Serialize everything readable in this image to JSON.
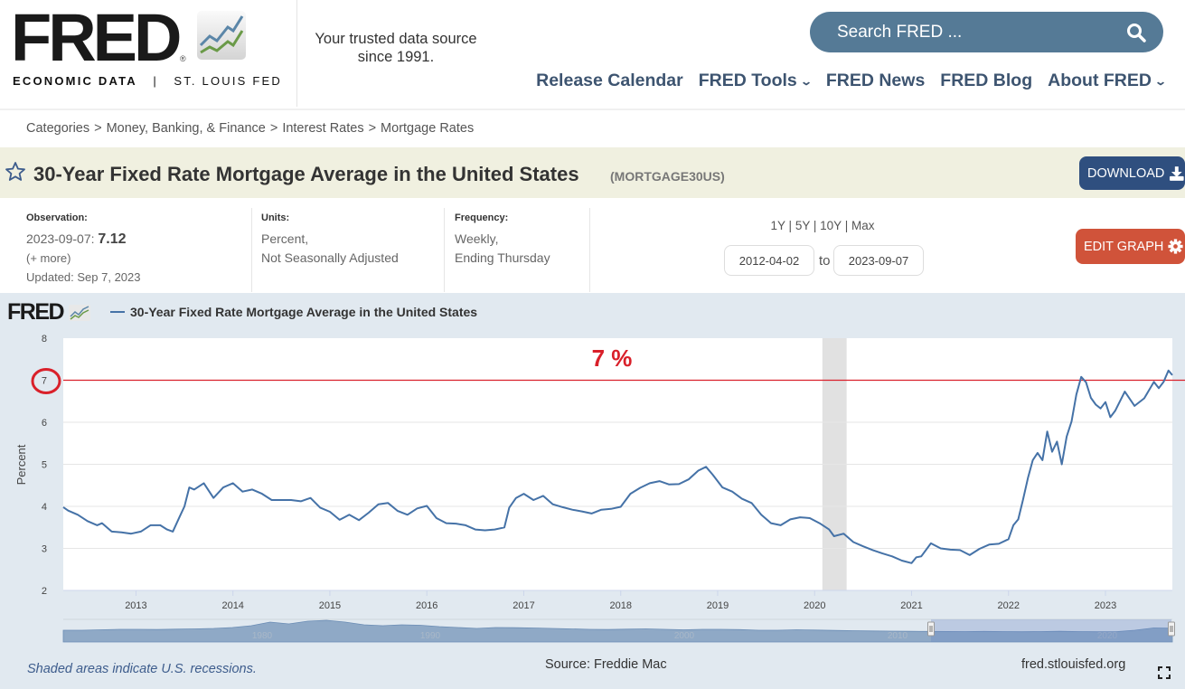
{
  "header": {
    "logo_text": "FRED",
    "logo_sub_bold": "ECONOMIC DATA",
    "logo_sub_sep": "|",
    "logo_sub": "ST. LOUIS FED",
    "tagline_line1": "Your trusted data source",
    "tagline_line2": "since 1991.",
    "search_placeholder": "Search FRED ...",
    "nav": [
      {
        "label": "Release Calendar",
        "dropdown": false
      },
      {
        "label": "FRED Tools",
        "dropdown": true
      },
      {
        "label": "FRED News",
        "dropdown": false
      },
      {
        "label": "FRED Blog",
        "dropdown": false
      },
      {
        "label": "About FRED",
        "dropdown": true
      }
    ]
  },
  "breadcrumb": {
    "items": [
      "Categories",
      "Money, Banking, & Finance",
      "Interest Rates",
      "Mortgage Rates"
    ],
    "separator": ">"
  },
  "series": {
    "title": "30-Year Fixed Rate Mortgage Average in the United States",
    "id": "(MORTGAGE30US)",
    "download_label": "DOWNLOAD",
    "edit_label": "EDIT GRAPH"
  },
  "meta": {
    "observation_label": "Observation:",
    "observation_date": "2023-09-07:",
    "observation_value": "7.12",
    "more_label": "(+ more)",
    "updated": "Updated: Sep 7, 2023",
    "units_label": "Units:",
    "units_line1": "Percent,",
    "units_line2": "Not Seasonally Adjusted",
    "frequency_label": "Frequency:",
    "frequency_line1": "Weekly,",
    "frequency_line2": "Ending Thursday",
    "range_links": [
      "1Y",
      "5Y",
      "10Y",
      "Max"
    ],
    "range_sep": "|",
    "date_from": "2012-04-02",
    "date_to": "2023-09-07",
    "to_label": "to"
  },
  "chart_footer": {
    "recession_note": "Shaded areas indicate U.S. recessions.",
    "source": "Source: Freddie Mac",
    "site": "fred.stlouisfed.org",
    "small_logo": "FRED"
  },
  "colors": {
    "series": "#4572a7",
    "annotation": "#d9202a",
    "recession": "#e1e1e1",
    "download": "#2f4f7f",
    "edit": "#d0533a",
    "search": "#557a96"
  },
  "chart_data": {
    "type": "line",
    "title": "30-Year Fixed Rate Mortgage Average in the United States",
    "legend": [
      "30-Year Fixed Rate Mortgage Average in the United States"
    ],
    "legend_position": "top-left",
    "xlabel": "",
    "ylabel": "Percent",
    "xlim": [
      2012.25,
      2023.69
    ],
    "ylim": [
      2,
      8
    ],
    "yticks": [
      2,
      3,
      4,
      5,
      6,
      7,
      8
    ],
    "xticks": [
      2013,
      2014,
      2015,
      2016,
      2017,
      2018,
      2019,
      2020,
      2021,
      2022,
      2023
    ],
    "grid": true,
    "recessions": [
      [
        2020.08,
        2020.33
      ]
    ],
    "annotation": {
      "label": "7 %",
      "y": 7,
      "color": "#d9202a",
      "circled_tick": "7"
    },
    "navigator_labels": [
      "1980",
      "1990",
      "2000",
      "2010",
      "2020"
    ],
    "series": [
      {
        "name": "30-Year Fixed Rate Mortgage Average in the United States",
        "x": [
          2012.25,
          2012.3,
          2012.4,
          2012.5,
          2012.6,
          2012.65,
          2012.75,
          2012.85,
          2012.95,
          2013.05,
          2013.15,
          2013.25,
          2013.32,
          2013.38,
          2013.45,
          2013.5,
          2013.55,
          2013.6,
          2013.7,
          2013.8,
          2013.9,
          2014.0,
          2014.1,
          2014.2,
          2014.3,
          2014.4,
          2014.5,
          2014.6,
          2014.7,
          2014.8,
          2014.9,
          2015.0,
          2015.1,
          2015.2,
          2015.3,
          2015.4,
          2015.5,
          2015.6,
          2015.7,
          2015.8,
          2015.9,
          2016.0,
          2016.1,
          2016.2,
          2016.3,
          2016.4,
          2016.5,
          2016.6,
          2016.7,
          2016.8,
          2016.85,
          2016.92,
          2017.0,
          2017.1,
          2017.2,
          2017.3,
          2017.4,
          2017.5,
          2017.6,
          2017.7,
          2017.8,
          2017.9,
          2018.0,
          2018.1,
          2018.2,
          2018.3,
          2018.4,
          2018.5,
          2018.6,
          2018.7,
          2018.8,
          2018.88,
          2018.95,
          2019.05,
          2019.15,
          2019.25,
          2019.35,
          2019.45,
          2019.55,
          2019.65,
          2019.75,
          2019.85,
          2019.95,
          2020.05,
          2020.15,
          2020.2,
          2020.3,
          2020.4,
          2020.5,
          2020.6,
          2020.7,
          2020.8,
          2020.9,
          2021.0,
          2021.05,
          2021.1,
          2021.2,
          2021.3,
          2021.4,
          2021.5,
          2021.6,
          2021.7,
          2021.8,
          2021.9,
          2022.0,
          2022.05,
          2022.1,
          2022.15,
          2022.2,
          2022.25,
          2022.3,
          2022.35,
          2022.4,
          2022.45,
          2022.5,
          2022.55,
          2022.6,
          2022.65,
          2022.7,
          2022.75,
          2022.8,
          2022.85,
          2022.9,
          2022.95,
          2023.0,
          2023.05,
          2023.1,
          2023.2,
          2023.3,
          2023.4,
          2023.5,
          2023.55,
          2023.6,
          2023.65,
          2023.69
        ],
        "values": [
          3.98,
          3.9,
          3.8,
          3.65,
          3.55,
          3.6,
          3.4,
          3.38,
          3.35,
          3.4,
          3.55,
          3.55,
          3.45,
          3.4,
          3.75,
          4.0,
          4.45,
          4.4,
          4.55,
          4.2,
          4.45,
          4.55,
          4.35,
          4.4,
          4.3,
          4.15,
          4.15,
          4.15,
          4.12,
          4.2,
          3.97,
          3.87,
          3.68,
          3.8,
          3.67,
          3.85,
          4.05,
          4.08,
          3.89,
          3.8,
          3.95,
          4.01,
          3.72,
          3.6,
          3.59,
          3.55,
          3.45,
          3.43,
          3.45,
          3.5,
          3.97,
          4.2,
          4.3,
          4.15,
          4.25,
          4.05,
          3.98,
          3.92,
          3.88,
          3.83,
          3.92,
          3.94,
          3.99,
          4.3,
          4.44,
          4.55,
          4.6,
          4.52,
          4.53,
          4.64,
          4.85,
          4.94,
          4.75,
          4.45,
          4.35,
          4.18,
          4.08,
          3.8,
          3.6,
          3.55,
          3.69,
          3.74,
          3.72,
          3.6,
          3.45,
          3.29,
          3.35,
          3.15,
          3.05,
          2.96,
          2.88,
          2.81,
          2.71,
          2.65,
          2.79,
          2.81,
          3.12,
          3.0,
          2.97,
          2.96,
          2.84,
          2.99,
          3.09,
          3.11,
          3.22,
          3.55,
          3.69,
          4.16,
          4.67,
          5.1,
          5.27,
          5.1,
          5.78,
          5.3,
          5.54,
          5.0,
          5.66,
          6.02,
          6.66,
          7.08,
          6.95,
          6.58,
          6.42,
          6.33,
          6.48,
          6.12,
          6.27,
          6.73,
          6.39,
          6.57,
          6.96,
          6.81,
          6.96,
          7.23,
          7.12
        ]
      }
    ]
  }
}
